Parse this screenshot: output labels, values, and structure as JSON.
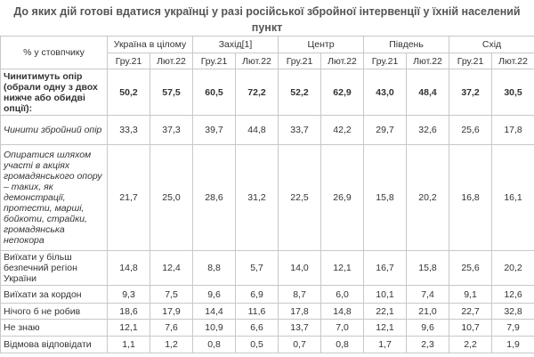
{
  "title": "До яких дій готові вдатися українці у разі російської збройної інтервенції у їхній населений пункт",
  "table": {
    "corner": "% у стовпчику",
    "groups": [
      "Україна в цілому",
      "Захід[1]",
      "Центр",
      "Південь",
      "Схід"
    ],
    "subheaders": [
      "Гру.21",
      "Лют.22",
      "Гру.21",
      "Лют.22",
      "Гру.21",
      "Лют.22",
      "Гру.21",
      "Лют.22",
      "Гру.21",
      "Лют.22"
    ],
    "rows": [
      [
        "Чинитимуть опір (обрали одну з двох нижче або обидві опції):",
        "50,2",
        "57,5",
        "60,5",
        "72,2",
        "52,2",
        "62,9",
        "43,0",
        "48,4",
        "37,2",
        "30,5"
      ],
      [
        "Чинити збройний опір",
        "33,3",
        "37,3",
        "39,7",
        "44,8",
        "33,7",
        "42,2",
        "29,7",
        "32,6",
        "25,6",
        "17,8"
      ],
      [
        "Опиратися шляхом участі в акціях громадянського опору – таких, як демонстрації, протести, марші, бойкоти, страйки, громадянська непокора",
        "21,7",
        "25,0",
        "28,6",
        "31,2",
        "22,5",
        "26,9",
        "15,8",
        "20,2",
        "16,8",
        "16,1"
      ],
      [
        "Виїхати у більш безпечний регіон України",
        "14,8",
        "12,4",
        "8,8",
        "5,7",
        "14,0",
        "12,1",
        "16,7",
        "15,8",
        "25,6",
        "20,2"
      ],
      [
        "Виїхати за кордон",
        "9,3",
        "7,5",
        "9,6",
        "6,9",
        "8,7",
        "6,0",
        "10,1",
        "7,4",
        "9,1",
        "12,6"
      ],
      [
        "Нічого б не робив",
        "18,6",
        "17,9",
        "14,4",
        "11,6",
        "17,8",
        "14,8",
        "22,1",
        "21,0",
        "22,7",
        "32,8"
      ],
      [
        "Не знаю",
        "12,1",
        "7,6",
        "10,9",
        "6,6",
        "13,7",
        "7,0",
        "12,1",
        "9,6",
        "10,7",
        "7,9"
      ],
      [
        "Відмова відповідати",
        "1,1",
        "1,2",
        "0,8",
        "0,5",
        "0,7",
        "0,8",
        "1,7",
        "2,3",
        "2,2",
        "1,9"
      ]
    ]
  }
}
